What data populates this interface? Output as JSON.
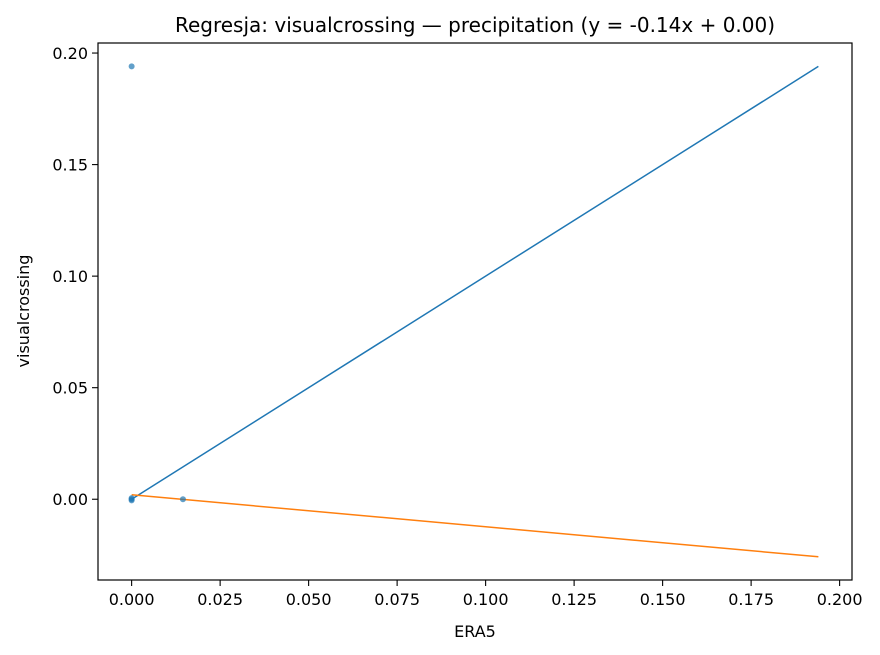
{
  "chart_data": {
    "type": "scatter",
    "title": "Regresja: visualcrossing — precipitation (y = -0.14x + 0.00)",
    "xlabel": "ERA5",
    "ylabel": "visualcrossing",
    "xlim": [
      -0.0095,
      0.2035
    ],
    "ylim": [
      -0.0362,
      0.2045
    ],
    "x_ticks": [
      0.0,
      0.025,
      0.05,
      0.075,
      0.1,
      0.125,
      0.15,
      0.175,
      0.2
    ],
    "x_tick_labels": [
      "0.000",
      "0.025",
      "0.050",
      "0.075",
      "0.100",
      "0.125",
      "0.150",
      "0.175",
      "0.200"
    ],
    "y_ticks": [
      0.0,
      0.05,
      0.1,
      0.15,
      0.2
    ],
    "y_tick_labels": [
      "0.00",
      "0.05",
      "0.10",
      "0.15",
      "0.20"
    ],
    "grid": false,
    "points": [
      {
        "x": 0.0,
        "y": 0.194
      },
      {
        "x": 0.0,
        "y": 0.0
      },
      {
        "x": 0.0,
        "y": 0.0005
      },
      {
        "x": 0.0,
        "y": -0.0005
      },
      {
        "x": 0.0145,
        "y": 0.0
      }
    ],
    "lines": [
      {
        "x": [
          0.0,
          0.194
        ],
        "y": [
          0.0,
          0.194
        ],
        "color": "#1f77b4"
      },
      {
        "x": [
          0.0,
          0.194
        ],
        "y": [
          0.002,
          -0.0258
        ],
        "color": "#ff7f0e"
      }
    ],
    "point_color": "#1f77b4"
  }
}
